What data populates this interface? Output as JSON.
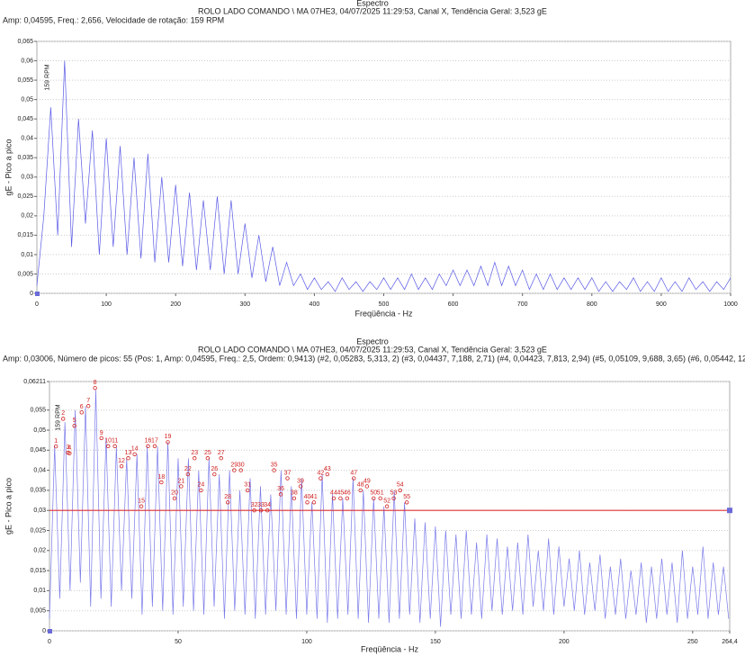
{
  "chart_data": [
    {
      "type": "line",
      "title": "Espectro",
      "subtitle": "ROLO LADO COMANDO \\ MA 07HE3, 04/07/2025 11:29:53, Canal X, Tendência Geral: 3,523 gE",
      "info": "Amp: 0,04595, Freq.: 2,656, Velocidade de rotação: 159 RPM",
      "annotation": "159 RPM",
      "xlabel": "Freqüência - Hz",
      "ylabel": "gE - Pico a pico",
      "color": "#5a5ae6",
      "grid": true,
      "xlim": [
        0,
        1000
      ],
      "xticks": [
        0,
        100,
        200,
        300,
        400,
        500,
        600,
        700,
        800,
        900,
        1000
      ],
      "ylim": [
        0,
        0.065
      ],
      "yticks": [
        0,
        {
          "value": 0.005,
          "label": "0,005"
        },
        {
          "value": 0.01,
          "label": "0,01"
        },
        {
          "value": 0.015,
          "label": "0,015"
        },
        {
          "value": 0.02,
          "label": "0,02"
        },
        {
          "value": 0.025,
          "label": "0,025"
        },
        {
          "value": 0.03,
          "label": "0,03"
        },
        {
          "value": 0.035,
          "label": "0,035"
        },
        {
          "value": 0.04,
          "label": "0,04"
        },
        {
          "value": 0.045,
          "label": "0,045"
        },
        {
          "value": 0.05,
          "label": "0,05"
        },
        {
          "value": 0.055,
          "label": "0,055"
        },
        {
          "value": 0.06,
          "label": "0,06"
        },
        {
          "value": 0.065,
          "label": "0,065"
        }
      ],
      "x": [
        0,
        10,
        20,
        30,
        40,
        50,
        60,
        70,
        80,
        90,
        100,
        110,
        120,
        130,
        140,
        150,
        160,
        170,
        180,
        190,
        200,
        210,
        220,
        230,
        240,
        250,
        260,
        270,
        280,
        290,
        300,
        310,
        320,
        330,
        340,
        350,
        360,
        370,
        380,
        390,
        400,
        410,
        420,
        430,
        440,
        450,
        460,
        470,
        480,
        490,
        500,
        510,
        520,
        530,
        540,
        550,
        560,
        570,
        580,
        590,
        600,
        610,
        620,
        630,
        640,
        650,
        660,
        670,
        680,
        690,
        700,
        710,
        720,
        730,
        740,
        750,
        760,
        770,
        780,
        790,
        800,
        810,
        820,
        830,
        840,
        850,
        860,
        870,
        880,
        890,
        900,
        910,
        920,
        930,
        940,
        950,
        960,
        970,
        980,
        990,
        1000
      ],
      "values": [
        0.002,
        0.02,
        0.048,
        0.015,
        0.06,
        0.012,
        0.045,
        0.018,
        0.042,
        0.01,
        0.04,
        0.012,
        0.038,
        0.01,
        0.035,
        0.009,
        0.036,
        0.008,
        0.03,
        0.008,
        0.028,
        0.007,
        0.026,
        0.006,
        0.024,
        0.006,
        0.025,
        0.005,
        0.024,
        0.005,
        0.018,
        0.004,
        0.015,
        0.003,
        0.012,
        0.002,
        0.008,
        0.002,
        0.005,
        0.001,
        0.004,
        0.001,
        0.003,
        0.0005,
        0.004,
        0.001,
        0.003,
        0.0005,
        0.003,
        0.001,
        0.004,
        0.001,
        0.004,
        0.001,
        0.005,
        0.001,
        0.004,
        0.001,
        0.005,
        0.002,
        0.006,
        0.002,
        0.006,
        0.002,
        0.007,
        0.002,
        0.008,
        0.002,
        0.007,
        0.002,
        0.006,
        0.001,
        0.005,
        0.001,
        0.005,
        0.001,
        0.004,
        0.001,
        0.004,
        0.001,
        0.004,
        0.0005,
        0.003,
        0.0005,
        0.003,
        0.001,
        0.004,
        0.0005,
        0.003,
        0.0005,
        0.004,
        0.0005,
        0.003,
        0.0005,
        0.004,
        0.001,
        0.003,
        0.0005,
        0.003,
        0.001,
        0.004
      ]
    },
    {
      "type": "line",
      "title": "Espectro",
      "subtitle": "ROLO LADO COMANDO \\ MA 07HE3, 04/07/2025 11:29:53, Canal X, Tendência Geral: 3,523 gE",
      "info": "Amp: 0,03006, Número de picos: 55 (Pos: 1, Amp: 0,04595, Freq.: 2,5, Ordem: 0,9413) (#2, 0,05283, 5,313, 2) (#3, 0,04437, 7,188, 2,71) (#4, 0,04423, 7,813, 2,94) (#5, 0,05109, 9,688, 3,65) (#6, 0,05442, 12,5, 4,71",
      "annotation": "159 RPM",
      "xlabel": "Freqüência - Hz",
      "ylabel": "gE - Pico a pico",
      "color": "#7a7aea",
      "grid": true,
      "threshold": 0.03,
      "threshold_color": "#e03030",
      "xlim": [
        0,
        264.4
      ],
      "xticks": [
        0,
        50,
        100,
        150,
        200,
        250,
        {
          "value": 264.4,
          "label": "264,4"
        }
      ],
      "ylim": [
        0,
        0.06211
      ],
      "yticks": [
        0,
        {
          "value": 0.005,
          "label": "0,005"
        },
        {
          "value": 0.01,
          "label": "0,01"
        },
        {
          "value": 0.015,
          "label": "0,015"
        },
        {
          "value": 0.02,
          "label": "0,02"
        },
        {
          "value": 0.025,
          "label": "0,025"
        },
        {
          "value": 0.03,
          "label": "0,03"
        },
        {
          "value": 0.035,
          "label": "0,035"
        },
        {
          "value": 0.04,
          "label": "0,04"
        },
        {
          "value": 0.045,
          "label": "0,045"
        },
        {
          "value": 0.05,
          "label": "0,05"
        },
        {
          "value": 0.055,
          "label": "0,055"
        },
        {
          "value": 0.06211,
          "label": "0,06211"
        }
      ],
      "x": [
        0,
        2,
        4,
        6,
        8,
        10,
        12,
        14,
        16,
        18,
        20,
        22,
        24,
        26,
        28,
        30,
        32,
        34,
        36,
        38,
        40,
        42,
        44,
        46,
        48,
        50,
        52,
        54,
        56,
        58,
        60,
        62,
        64,
        66,
        68,
        70,
        72,
        74,
        76,
        78,
        80,
        82,
        84,
        86,
        88,
        90,
        92,
        94,
        96,
        98,
        100,
        102,
        104,
        106,
        108,
        110,
        112,
        114,
        116,
        118,
        120,
        122,
        124,
        126,
        128,
        130,
        132,
        134,
        136,
        138,
        140,
        142,
        144,
        146,
        148,
        150,
        152,
        154,
        156,
        158,
        160,
        162,
        164,
        166,
        168,
        170,
        172,
        174,
        176,
        178,
        180,
        182,
        184,
        186,
        188,
        190,
        192,
        194,
        196,
        198,
        200,
        202,
        204,
        206,
        208,
        210,
        212,
        214,
        216,
        218,
        220,
        222,
        224,
        226,
        228,
        230,
        232,
        234,
        236,
        238,
        240,
        242,
        244,
        246,
        248,
        250,
        252,
        254,
        256,
        258,
        260,
        262,
        264
      ],
      "values": [
        0.003,
        0.046,
        0.008,
        0.052,
        0.01,
        0.055,
        0.012,
        0.056,
        0.006,
        0.06,
        0.008,
        0.048,
        0.006,
        0.046,
        0.01,
        0.043,
        0.008,
        0.044,
        0.004,
        0.046,
        0.006,
        0.046,
        0.005,
        0.047,
        0.004,
        0.043,
        0.006,
        0.043,
        0.005,
        0.04,
        0.004,
        0.043,
        0.006,
        0.039,
        0.003,
        0.04,
        0.005,
        0.035,
        0.004,
        0.038,
        0.003,
        0.036,
        0.004,
        0.034,
        0.005,
        0.04,
        0.004,
        0.036,
        0.003,
        0.038,
        0.004,
        0.032,
        0.003,
        0.039,
        0.002,
        0.034,
        0.003,
        0.033,
        0.004,
        0.038,
        0.003,
        0.035,
        0.002,
        0.033,
        0.003,
        0.031,
        0.002,
        0.035,
        0.003,
        0.032,
        0.004,
        0.028,
        0.002,
        0.027,
        0.003,
        0.026,
        0.001,
        0.025,
        0.004,
        0.024,
        0.003,
        0.025,
        0.004,
        0.022,
        0.003,
        0.024,
        0.005,
        0.023,
        0.004,
        0.021,
        0.005,
        0.022,
        0.004,
        0.024,
        0.006,
        0.02,
        0.005,
        0.023,
        0.004,
        0.021,
        0.006,
        0.018,
        0.005,
        0.02,
        0.004,
        0.017,
        0.005,
        0.019,
        0.003,
        0.016,
        0.004,
        0.018,
        0.003,
        0.015,
        0.004,
        0.017,
        0.002,
        0.016,
        0.003,
        0.018,
        0.004,
        0.017,
        0.002,
        0.02,
        0.003,
        0.016,
        0.004,
        0.021,
        0.003,
        0.017,
        0.004,
        0.016,
        0.003
      ],
      "peaks": {
        "labels": [
          "1",
          "2",
          "3",
          "4",
          "5",
          "6",
          "7",
          "8",
          "9",
          "10",
          "11",
          "12",
          "13",
          "14",
          "15",
          "16",
          "17",
          "18",
          "19",
          "20",
          "21",
          "22",
          "23",
          "24",
          "25",
          "26",
          "27",
          "28",
          "29",
          "30",
          "31",
          "32",
          "33",
          "34",
          "35",
          "36",
          "37",
          "38",
          "39",
          "40",
          "41",
          "42",
          "43",
          "44",
          "45",
          "46",
          "47",
          "48",
          "49",
          "50",
          "51",
          "52",
          "53",
          "54",
          "55"
        ],
        "x": [
          2.5,
          5.313,
          7.188,
          7.813,
          9.688,
          12.5,
          15.1,
          17.7,
          20.2,
          22.8,
          25.4,
          28.0,
          30.6,
          33.1,
          35.7,
          38.3,
          40.9,
          43.5,
          46.0,
          48.6,
          51.2,
          53.8,
          56.4,
          58.9,
          61.5,
          64.1,
          66.7,
          69.3,
          71.8,
          74.4,
          77.0,
          79.6,
          82.2,
          84.7,
          87.3,
          89.9,
          92.5,
          95.1,
          97.6,
          100.2,
          102.8,
          105.4,
          108.0,
          110.5,
          113.1,
          115.7,
          118.3,
          120.9,
          123.4,
          126.0,
          128.6,
          131.2,
          133.8,
          136.3,
          138.9
        ],
        "values": [
          0.04595,
          0.05283,
          0.04437,
          0.04423,
          0.05109,
          0.05442,
          0.056,
          0.0605,
          0.048,
          0.046,
          0.046,
          0.041,
          0.043,
          0.044,
          0.031,
          0.046,
          0.046,
          0.037,
          0.047,
          0.033,
          0.036,
          0.039,
          0.043,
          0.035,
          0.043,
          0.039,
          0.043,
          0.032,
          0.04,
          0.04,
          0.035,
          0.03,
          0.03,
          0.03,
          0.04,
          0.034,
          0.038,
          0.033,
          0.036,
          0.032,
          0.032,
          0.038,
          0.039,
          0.033,
          0.033,
          0.033,
          0.038,
          0.035,
          0.036,
          0.033,
          0.033,
          0.031,
          0.033,
          0.035,
          0.032
        ],
        "color": "#d02020"
      }
    }
  ]
}
